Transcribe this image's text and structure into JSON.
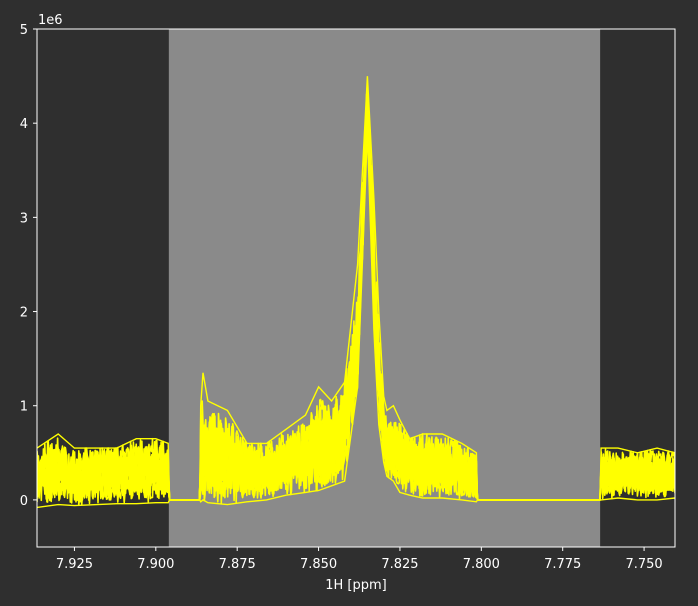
{
  "chart_data": {
    "type": "line",
    "title": "",
    "xlabel": "1H [ppm]",
    "ylabel": "",
    "y_scale_label": "1e6",
    "x_axis_reversed": true,
    "xlim": [
      7.9365,
      7.7405
    ],
    "ylim": [
      -0.5,
      5
    ],
    "x_ticks": [
      7.925,
      7.9,
      7.875,
      7.85,
      7.825,
      7.8,
      7.775,
      7.75
    ],
    "x_tick_labels": [
      "7.925",
      "7.900",
      "7.875",
      "7.850",
      "7.825",
      "7.800",
      "7.775",
      "7.750"
    ],
    "y_ticks": [
      0,
      1,
      2,
      3,
      4,
      5
    ],
    "y_tick_labels": [
      "0",
      "1",
      "2",
      "3",
      "4",
      "5"
    ],
    "grid": false,
    "legend": "none",
    "highlight_region": {
      "x_from": 7.896,
      "x_to": 7.7635,
      "color": "#8a8a8a"
    },
    "colors": {
      "figure_bg": "#2f2f2f",
      "axes_bg": "#2f2f2f",
      "series": "#ffff00",
      "text": "#ffffff"
    },
    "series": [
      {
        "color": "#ffff00",
        "band": true,
        "x": [
          7.9365,
          7.93,
          7.925,
          7.918,
          7.912,
          7.906,
          7.9,
          7.8962,
          7.8958,
          7.8865,
          7.8862,
          7.8855,
          7.884,
          7.878,
          7.872,
          7.866,
          7.86,
          7.854,
          7.85,
          7.846,
          7.842,
          7.838,
          7.835,
          7.833,
          7.8315,
          7.83,
          7.829,
          7.827,
          7.825,
          7.822,
          7.818,
          7.812,
          7.806,
          7.8015,
          7.8012,
          7.7635,
          7.7632,
          7.758,
          7.752,
          7.746,
          7.7405
        ],
        "high": [
          0.55,
          0.7,
          0.55,
          0.55,
          0.55,
          0.65,
          0.65,
          0.6,
          0.0,
          0.0,
          1.0,
          1.35,
          1.05,
          0.95,
          0.6,
          0.6,
          0.75,
          0.9,
          1.2,
          1.05,
          1.25,
          2.5,
          4.5,
          3.2,
          2.0,
          1.1,
          0.95,
          1.0,
          0.85,
          0.65,
          0.7,
          0.7,
          0.6,
          0.5,
          0.0,
          0.0,
          0.55,
          0.55,
          0.5,
          0.55,
          0.5
        ],
        "mid": [
          0.25,
          0.3,
          0.22,
          0.28,
          0.28,
          0.3,
          0.33,
          0.3,
          0.0,
          0.0,
          0.45,
          0.55,
          0.5,
          0.4,
          0.3,
          0.32,
          0.38,
          0.45,
          0.55,
          0.6,
          0.75,
          1.6,
          4.2,
          2.4,
          1.3,
          0.7,
          0.55,
          0.5,
          0.45,
          0.4,
          0.38,
          0.35,
          0.3,
          0.25,
          0.0,
          0.0,
          0.3,
          0.25,
          0.3,
          0.25,
          0.3
        ],
        "low": [
          -0.08,
          -0.05,
          -0.06,
          -0.05,
          -0.04,
          -0.04,
          -0.03,
          -0.03,
          0.0,
          0.0,
          -0.02,
          0.0,
          -0.03,
          -0.05,
          -0.02,
          0.0,
          0.05,
          0.08,
          0.1,
          0.15,
          0.2,
          1.2,
          3.9,
          1.8,
          0.8,
          0.4,
          0.25,
          0.2,
          0.08,
          0.05,
          0.02,
          0.02,
          0.0,
          -0.02,
          0.0,
          0.0,
          0.0,
          0.02,
          0.0,
          0.0,
          0.02
        ]
      }
    ]
  }
}
